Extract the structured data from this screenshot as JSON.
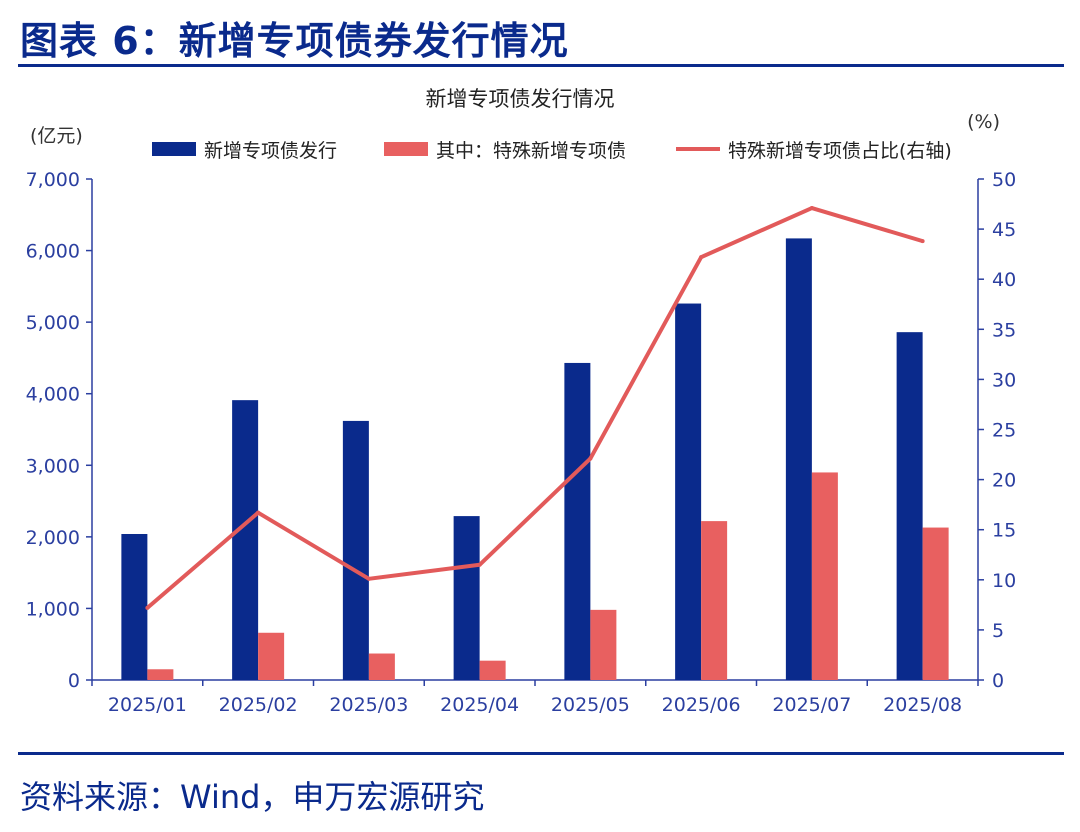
{
  "figure": {
    "title": "图表 6：新增专项债券发行情况",
    "source": "资料来源：Wind，申万宏源研究"
  },
  "colors": {
    "accent": "#0A2A8C",
    "bar1": "#0A2A8C",
    "bar2": "#E86060",
    "line": "#E25A5A",
    "axis": "#2B3FA0",
    "text": "#333333"
  },
  "chart_data": {
    "type": "bar",
    "title": "新增专项债发行情况",
    "ylabel_left": "(亿元)",
    "ylabel_right": "(%)",
    "categories": [
      "2025/01",
      "2025/02",
      "2025/03",
      "2025/04",
      "2025/05",
      "2025/06",
      "2025/07",
      "2025/08"
    ],
    "series": [
      {
        "name": "新增专项债发行",
        "type": "bar",
        "axis": "left",
        "values": [
          2040,
          3910,
          3620,
          2290,
          4430,
          5260,
          6170,
          4860
        ]
      },
      {
        "name": "其中：特殊新增专项债",
        "type": "bar",
        "axis": "left",
        "values": [
          150,
          660,
          370,
          270,
          980,
          2220,
          2900,
          2130
        ]
      },
      {
        "name": "特殊新增专项债占比(右轴)",
        "type": "line",
        "axis": "right",
        "values": [
          7.2,
          16.7,
          10.1,
          11.5,
          22.1,
          42.2,
          47.1,
          43.8
        ]
      }
    ],
    "ylim_left": [
      0,
      7000
    ],
    "ylim_right": [
      0,
      50
    ],
    "yticks_left": [
      "0",
      "1,000",
      "2,000",
      "3,000",
      "4,000",
      "5,000",
      "6,000",
      "7,000"
    ],
    "yticks_right": [
      "0",
      "5",
      "10",
      "15",
      "20",
      "25",
      "30",
      "35",
      "40",
      "45",
      "50"
    ],
    "legend_position": "top",
    "grid": false
  }
}
